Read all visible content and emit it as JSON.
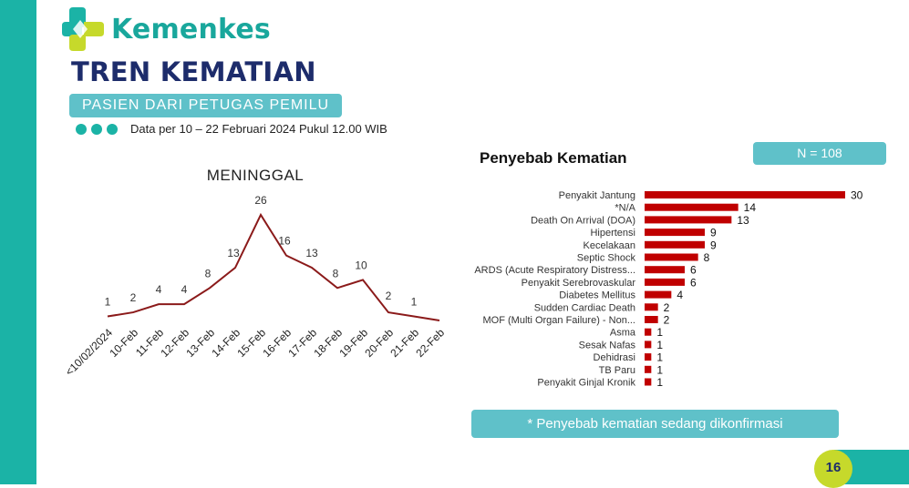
{
  "brand": {
    "name": "Kemenkes"
  },
  "header": {
    "title": "TREN KEMATIAN",
    "subtitle": "PASIEN DARI PETUGAS PEMILU",
    "date_note": "Data per 10 – 22 Februari 2024 Pukul 12.00  WIB"
  },
  "colors": {
    "teal": "#1bb3a6",
    "light_teal": "#5fc1c9",
    "navy": "#1d2c6b",
    "dark_red": "#8b1a1a",
    "bar_red": "#c00000",
    "lime": "#c6d92b"
  },
  "chart_data": [
    {
      "type": "line",
      "title": "MENINGGAL",
      "categories": [
        "<10/02/2024",
        "10-Feb",
        "11-Feb",
        "12-Feb",
        "13-Feb",
        "14-Feb",
        "15-Feb",
        "16-Feb",
        "17-Feb",
        "18-Feb",
        "19-Feb",
        "20-Feb",
        "21-Feb",
        "22-Feb"
      ],
      "values": [
        1,
        2,
        4,
        4,
        8,
        13,
        26,
        16,
        13,
        8,
        10,
        2,
        1,
        null
      ],
      "data_labels": [
        "1",
        "2",
        "4",
        "4",
        "8",
        "13",
        "26",
        "16",
        "13",
        "8",
        "10",
        "2",
        "1",
        ""
      ],
      "ylim": [
        0,
        26
      ],
      "grid": false,
      "legend": "none"
    },
    {
      "type": "bar",
      "orientation": "horizontal",
      "title": "Penyebab Kematian",
      "categories": [
        "Penyakit Jantung",
        "*N/A",
        "Death On Arrival (DOA)",
        "Hipertensi",
        "Kecelakaan",
        "Septic Shock",
        "ARDS (Acute Respiratory Distress...",
        "Penyakit Serebrovaskular",
        "Diabetes Mellitus",
        "Sudden Cardiac Death",
        "MOF (Multi Organ Failure) - Non...",
        "Asma",
        "Sesak Nafas",
        "Dehidrasi",
        "TB Paru",
        "Penyakit Ginjal Kronik"
      ],
      "values": [
        30,
        14,
        13,
        9,
        9,
        8,
        6,
        6,
        4,
        2,
        2,
        1,
        1,
        1,
        1,
        1
      ],
      "xlim": [
        0,
        30
      ],
      "grid": false,
      "legend": "none"
    }
  ],
  "n_label": "N = 108",
  "confirm_note": "* Penyebab kematian sedang dikonfirmasi",
  "page_number": "16"
}
